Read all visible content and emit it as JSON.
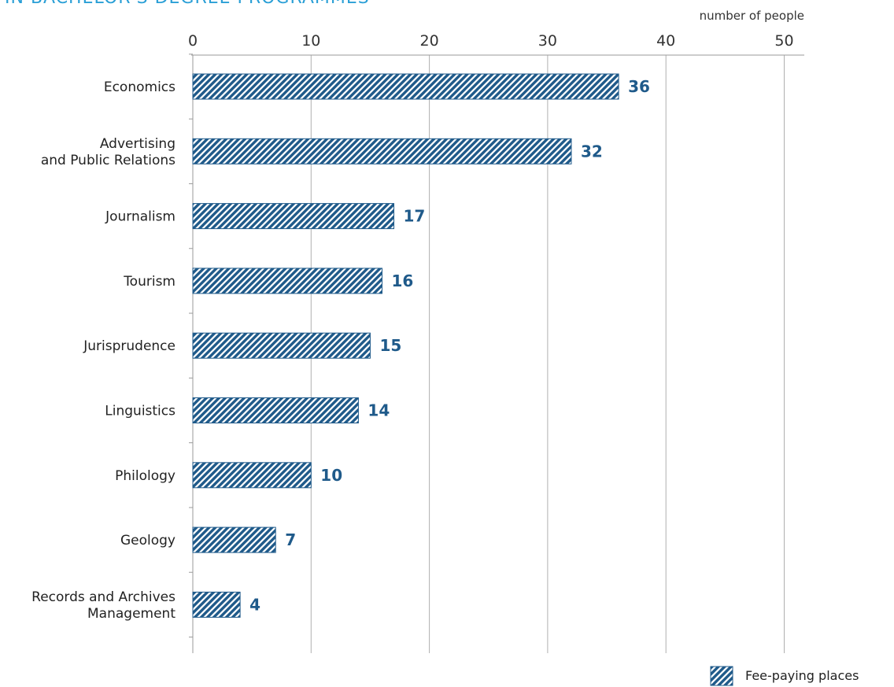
{
  "chart_data": {
    "type": "bar",
    "orientation": "horizontal",
    "title": "IN BACHELOR'S DEGREE PROGRAMMES",
    "unit_label": "number of people",
    "categories": [
      [
        "Economics"
      ],
      [
        "Advertising",
        "and Public Relations"
      ],
      [
        "Journalism"
      ],
      [
        "Tourism"
      ],
      [
        "Jurisprudence"
      ],
      [
        "Linguistics"
      ],
      [
        "Philology"
      ],
      [
        "Geology"
      ],
      [
        "Records and Archives",
        "Management"
      ]
    ],
    "series": [
      {
        "name": "Fee-paying places",
        "values": [
          36,
          32,
          17,
          16,
          15,
          14,
          10,
          7,
          4
        ],
        "pattern": "diagonal-hatch"
      }
    ],
    "xlim": [
      0,
      52
    ],
    "xticks": [
      0,
      10,
      20,
      30,
      40,
      50
    ],
    "grid": true,
    "legend_position": "bottom-right",
    "colors": {
      "bar": "#1f5a8a",
      "value_label": "#1f5a8a",
      "title": "#2a9fd6",
      "grid": "#b0b0b0",
      "axis": "#9a9a9a"
    }
  }
}
